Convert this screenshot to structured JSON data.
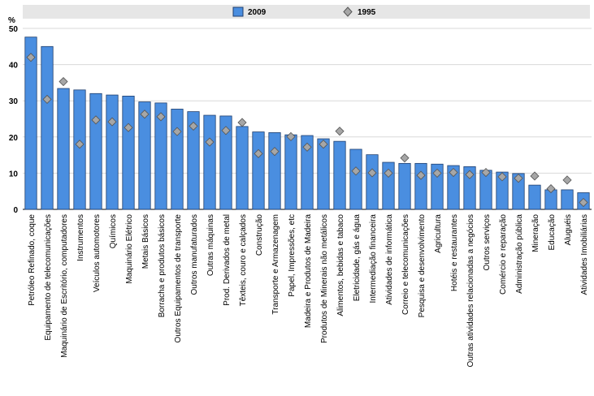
{
  "chart_data": {
    "type": "bar",
    "y_label": "%",
    "categories": [
      "Petróleo Refinado, coque",
      "Equipamento de telecomunicações",
      "Maquinário de Escritório, computadores",
      "Instrumentos",
      "Veículos automotores",
      "Químicos",
      "Maquinário Elétrico",
      "Metais Básicos",
      "Borracha e produtos básicos",
      "Outros Equipamentos de transporte",
      "Outros manufaturados",
      "Outras máquinas",
      "Prod. Derivados de metal",
      "Têxteis, couro e calçados",
      "Construção",
      "Transporte e Armazenagem",
      "Papel, Impressões, etc",
      "Madeira e Produtos de Madeira",
      "Produtos de Minerais não metálicos",
      "Alimentos, bebidas e tabaco",
      "Eletricidade, gás e água",
      "Intermediação financeira",
      "Atividades de informática",
      "Correio e telecomunicações",
      "Pesquisa e desenvolvimento",
      "Agricultura",
      "Hotéis e restaurantes",
      "Outras atividades relacionadas a negócios",
      "Outros serviços",
      "Comércio e reparação",
      "Administração pública",
      "Mineração",
      "Educação",
      "Aluguéis",
      "Atividades Imobiliárias"
    ],
    "series": [
      {
        "name": "2009",
        "color": "#4a8ee0",
        "values": [
          47.6,
          45,
          33.4,
          33,
          32,
          31.6,
          31.3,
          29.7,
          29.4,
          27.7,
          27.0,
          26.0,
          25.8,
          22.9,
          21.4,
          21.2,
          20.6,
          20.4,
          19.5,
          18.8,
          16.6,
          15.1,
          13,
          12.7,
          12.7,
          12.5,
          12.1,
          11.8,
          10.8,
          10.3,
          9.9,
          6.7,
          5.4,
          5.4,
          4.6
        ]
      },
      {
        "name": "1995",
        "color": "#a6a6a6",
        "values": [
          42,
          30.4,
          35.3,
          18,
          24.7,
          24.2,
          22.6,
          26.3,
          25.6,
          21.5,
          23,
          18.6,
          21.8,
          24,
          15.4,
          16,
          20.1,
          17.2,
          18,
          21.6,
          10.6,
          10.1,
          10,
          14.2,
          9.4,
          10,
          10.2,
          9.6,
          10.2,
          9,
          8.6,
          9.2,
          5.7,
          8.1,
          1.9
        ]
      }
    ],
    "ylim": [
      0,
      50
    ],
    "yticks": [
      0,
      10,
      20,
      30,
      40,
      50
    ],
    "grid": true
  }
}
